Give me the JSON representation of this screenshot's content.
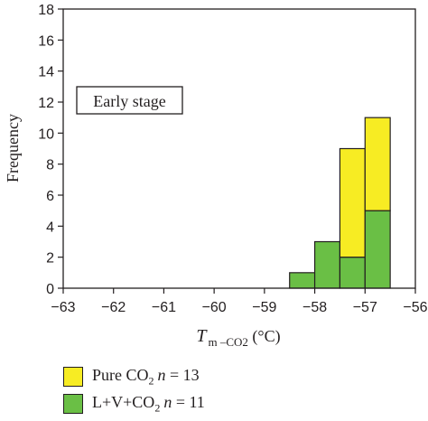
{
  "chart_data": {
    "type": "bar",
    "stacked": true,
    "annotation": "Early stage",
    "ylabel": "Frequency",
    "xlabel": {
      "symbol": "T",
      "subscript": "m –CO2",
      "unit": " (°C)"
    },
    "xlim": [
      -63,
      -56
    ],
    "ylim": [
      0,
      18
    ],
    "xticks": [
      -63,
      -62,
      -61,
      -60,
      -59,
      -58,
      -57,
      -56
    ],
    "xtick_labels": [
      "−63",
      "−62",
      "−61",
      "−60",
      "−59",
      "−58",
      "−57",
      "−56"
    ],
    "yticks": [
      0,
      2,
      4,
      6,
      8,
      10,
      12,
      14,
      16,
      18
    ],
    "bins": [
      [
        -58.5,
        -58.0
      ],
      [
        -58.0,
        -57.5
      ],
      [
        -57.5,
        -57.0
      ],
      [
        -57.0,
        -56.5
      ]
    ],
    "series": [
      {
        "key": "lvco2",
        "color": "#6abf45",
        "values": [
          1,
          3,
          2,
          5
        ]
      },
      {
        "key": "pure",
        "color": "#f7ec23",
        "values": [
          0,
          0,
          7,
          6
        ]
      }
    ],
    "grid": false
  },
  "legend": [
    {
      "color": "#f7ec23",
      "prefix": "Pure CO",
      "sub": "2",
      "n_label": "n",
      "n_text": " = 13"
    },
    {
      "color": "#6abf45",
      "prefix": "L+V+CO",
      "sub": "2",
      "n_label": "n",
      "n_text": " = 11"
    }
  ]
}
